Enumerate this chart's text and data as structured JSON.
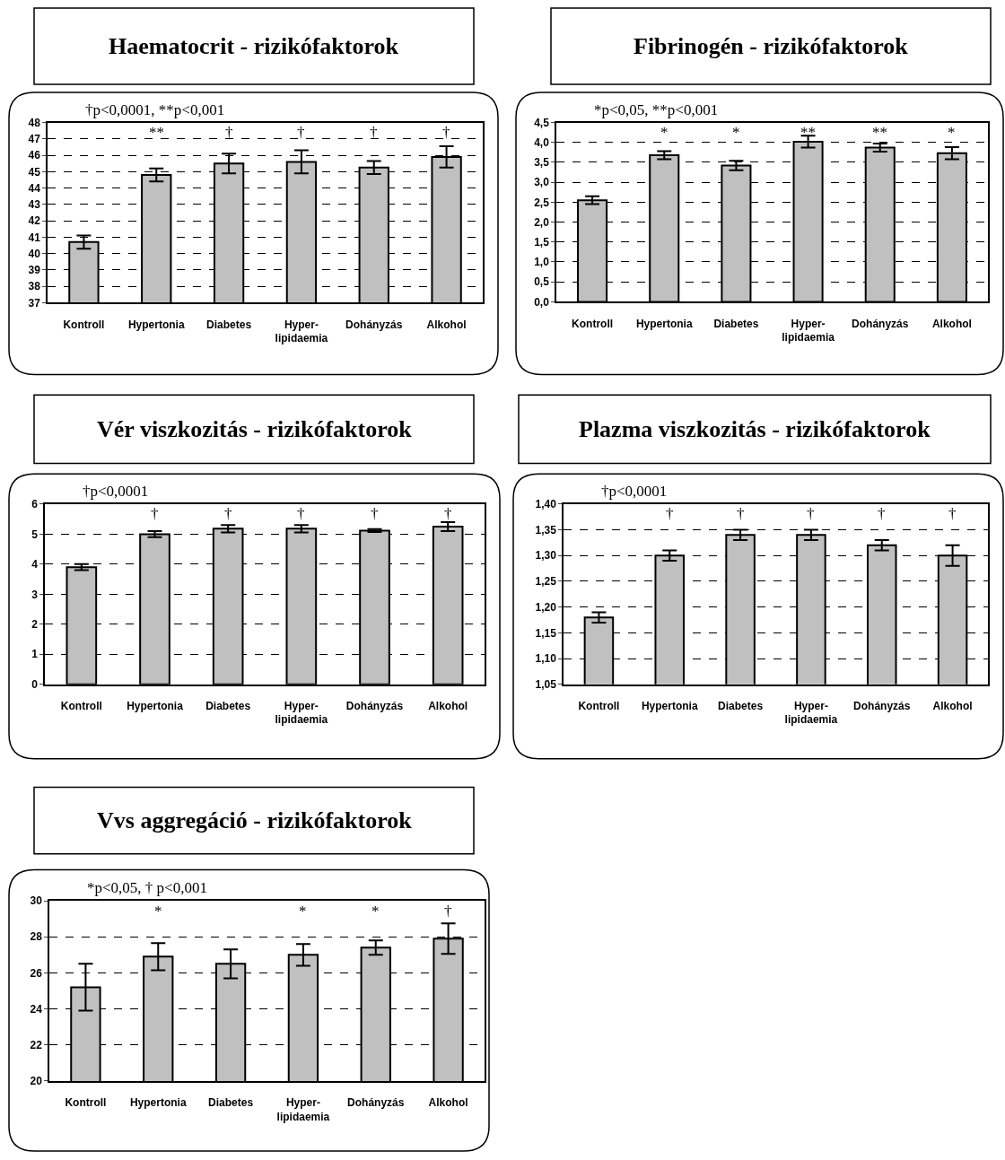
{
  "chart_data": [
    {
      "type": "bar",
      "title": "Haematocrit - rizikófaktorok",
      "categories": [
        "Kontroll",
        "Hypertonia",
        "Diabetes",
        "Hyper-\nlipidaemia",
        "Dohányzás",
        "Alkohol"
      ],
      "values": [
        40.7,
        44.8,
        45.5,
        45.6,
        45.25,
        45.9
      ],
      "errors": [
        0.4,
        0.4,
        0.6,
        0.7,
        0.4,
        0.65
      ],
      "value_labels": [
        null,
        "**",
        "†",
        "†",
        "†",
        "†"
      ],
      "color": "#c0c0c0",
      "ylim": [
        37,
        48
      ],
      "yticks": [
        37,
        38,
        39,
        40,
        41,
        42,
        43,
        44,
        45,
        46,
        47,
        48
      ],
      "grid": "y",
      "annotations": [
        "†p<0,0001, **p<0,001"
      ]
    },
    {
      "type": "bar",
      "title": "Fibrinogén - rizikófaktorok",
      "categories": [
        "Kontroll",
        "Hypertonia",
        "Diabetes",
        "Hyper-\nlipidaemia",
        "Dohányzás",
        "Alkohol"
      ],
      "values": [
        2.55,
        3.68,
        3.42,
        4.02,
        3.87,
        3.73
      ],
      "errors": [
        0.1,
        0.1,
        0.12,
        0.15,
        0.1,
        0.15
      ],
      "value_labels": [
        null,
        "*",
        "*",
        "**",
        "**",
        "*"
      ],
      "color": "#c0c0c0",
      "ylim": [
        0,
        4.5
      ],
      "yticks": [
        {
          "value": 0,
          "label": "0,0"
        },
        {
          "value": 0.5,
          "label": "0,5"
        },
        {
          "value": 1,
          "label": "1,0"
        },
        {
          "value": 1.5,
          "label": "1,5"
        },
        {
          "value": 2,
          "label": "2,0"
        },
        {
          "value": 2.5,
          "label": "2,5"
        },
        {
          "value": 3,
          "label": "3,0"
        },
        {
          "value": 3.5,
          "label": "3,5"
        },
        {
          "value": 4,
          "label": "4,0"
        },
        {
          "value": 4.5,
          "label": "4,5"
        }
      ],
      "grid": "y",
      "annotations": [
        "*p<0,05, **p<0,001"
      ]
    },
    {
      "type": "bar",
      "title": "Vér viszkozitás - rizikófaktorok",
      "categories": [
        "Kontroll",
        "Hypertonia",
        "Diabetes",
        "Hyper-\nlipidaemia",
        "Dohányzás",
        "Alkohol"
      ],
      "values": [
        3.9,
        5.0,
        5.18,
        5.18,
        5.12,
        5.25
      ],
      "errors": [
        0.1,
        0.1,
        0.12,
        0.12,
        0.05,
        0.15
      ],
      "value_labels": [
        null,
        "†",
        "†",
        "†",
        "†",
        "†"
      ],
      "color": "#c0c0c0",
      "ylim": [
        0,
        6
      ],
      "yticks": [
        0,
        1,
        2,
        3,
        4,
        5,
        6
      ],
      "grid": "y",
      "annotations": [
        "†p<0,0001"
      ]
    },
    {
      "type": "bar",
      "title": "Plazma viszkozitás - rizikófaktorok",
      "categories": [
        "Kontroll",
        "Hypertonia",
        "Diabetes",
        "Hyper-\nlipidaemia",
        "Dohányzás",
        "Alkohol"
      ],
      "values": [
        1.18,
        1.3,
        1.34,
        1.34,
        1.32,
        1.3
      ],
      "errors": [
        0.01,
        0.01,
        0.01,
        0.01,
        0.01,
        0.02
      ],
      "value_labels": [
        null,
        "†",
        "†",
        "†",
        "†",
        "†"
      ],
      "color": "#c0c0c0",
      "ylim": [
        1.05,
        1.4
      ],
      "yticks": [
        {
          "value": 1.05,
          "label": "1,05"
        },
        {
          "value": 1.1,
          "label": "1,10"
        },
        {
          "value": 1.15,
          "label": "1,15"
        },
        {
          "value": 1.2,
          "label": "1,20"
        },
        {
          "value": 1.25,
          "label": "1,25"
        },
        {
          "value": 1.3,
          "label": "1,30"
        },
        {
          "value": 1.35,
          "label": "1,35"
        },
        {
          "value": 1.4,
          "label": "1,40"
        }
      ],
      "grid": "y",
      "annotations": [
        "†p<0,0001"
      ]
    },
    {
      "type": "bar",
      "title": "Vvs aggregáció - rizikófaktorok",
      "categories": [
        "Kontroll",
        "Hypertonia",
        "Diabetes",
        "Hyper-\nlipidaemia",
        "Dohányzás",
        "Alkohol"
      ],
      "values": [
        25.2,
        26.9,
        26.5,
        27.0,
        27.4,
        27.9
      ],
      "errors": [
        1.3,
        0.75,
        0.8,
        0.6,
        0.4,
        0.85
      ],
      "value_labels": [
        null,
        "*",
        null,
        "*",
        "*",
        "†"
      ],
      "color": "#c0c0c0",
      "ylim": [
        20,
        30
      ],
      "yticks": [
        20,
        22,
        24,
        26,
        28,
        30
      ],
      "grid": "y",
      "annotations": [
        "*p<0,05, † p<0,001"
      ]
    }
  ]
}
